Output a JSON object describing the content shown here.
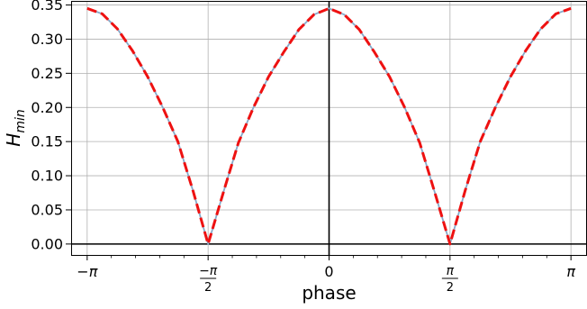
{
  "chart_data": {
    "type": "line",
    "title": "",
    "xlabel": "phase",
    "ylabel": "H",
    "ylabel_sub": "min",
    "xlim": [
      -3.35,
      3.35
    ],
    "ylim": [
      -0.016,
      0.356
    ],
    "grid": true,
    "x_ticks": [
      {
        "value": -3.14159,
        "label": "−π",
        "kind": "plain"
      },
      {
        "value": -1.5708,
        "num": "−π",
        "den": "2",
        "kind": "fraction"
      },
      {
        "value": 0,
        "label": "0",
        "kind": "plain"
      },
      {
        "value": 1.5708,
        "num": "π",
        "den": "2",
        "kind": "fraction"
      },
      {
        "value": 3.14159,
        "label": "π",
        "kind": "plain"
      }
    ],
    "y_ticks": [
      {
        "value": 0.0,
        "label": "0.00"
      },
      {
        "value": 0.05,
        "label": "0.05"
      },
      {
        "value": 0.1,
        "label": "0.10"
      },
      {
        "value": 0.15,
        "label": "0.15"
      },
      {
        "value": 0.2,
        "label": "0.20"
      },
      {
        "value": 0.25,
        "label": "0.25"
      },
      {
        "value": 0.3,
        "label": "0.30"
      },
      {
        "value": 0.35,
        "label": "0.35"
      }
    ],
    "x_minor_step": 0.314159,
    "series": [
      {
        "style": "solid",
        "color": "#87a9c9",
        "x": [
          -3.1416,
          -2.9452,
          -2.7489,
          -2.5525,
          -2.3562,
          -2.1598,
          -1.9635,
          -1.7671,
          -1.5708,
          -1.3744,
          -1.1781,
          -0.9817,
          -0.7854,
          -0.589,
          -0.3927,
          -0.1963,
          0.0,
          0.1963,
          0.3927,
          0.589,
          0.7854,
          0.9817,
          1.1781,
          1.3744,
          1.5708,
          1.7671,
          1.9635,
          2.1598,
          2.3562,
          2.5525,
          2.7489,
          2.9452,
          3.1416
        ],
        "y": [
          0.345,
          0.337,
          0.315,
          0.283,
          0.245,
          0.2,
          0.15,
          0.078,
          0.0,
          0.075,
          0.148,
          0.2,
          0.245,
          0.281,
          0.314,
          0.336,
          0.345,
          0.336,
          0.314,
          0.281,
          0.245,
          0.2,
          0.148,
          0.075,
          0.0,
          0.078,
          0.15,
          0.2,
          0.245,
          0.283,
          0.315,
          0.337,
          0.345
        ]
      },
      {
        "style": "dashed",
        "color": "#ee1111",
        "x": [
          -3.1416,
          -2.9452,
          -2.7489,
          -2.5525,
          -2.3562,
          -2.1598,
          -1.9635,
          -1.7671,
          -1.5708,
          -1.3744,
          -1.1781,
          -0.9817,
          -0.7854,
          -0.589,
          -0.3927,
          -0.1963,
          0.0,
          0.1963,
          0.3927,
          0.589,
          0.7854,
          0.9817,
          1.1781,
          1.3744,
          1.5708,
          1.7671,
          1.9635,
          2.1598,
          2.3562,
          2.5525,
          2.7489,
          2.9452,
          3.1416
        ],
        "y": [
          0.345,
          0.337,
          0.315,
          0.283,
          0.245,
          0.2,
          0.15,
          0.078,
          0.0,
          0.075,
          0.148,
          0.2,
          0.245,
          0.281,
          0.314,
          0.336,
          0.345,
          0.336,
          0.314,
          0.281,
          0.245,
          0.2,
          0.148,
          0.075,
          0.0,
          0.078,
          0.15,
          0.2,
          0.245,
          0.283,
          0.315,
          0.337,
          0.345
        ]
      }
    ],
    "reference_lines": [
      {
        "axis": "y",
        "value": 0,
        "color": "#000000"
      },
      {
        "axis": "x",
        "value": 0,
        "color": "#000000"
      }
    ]
  }
}
